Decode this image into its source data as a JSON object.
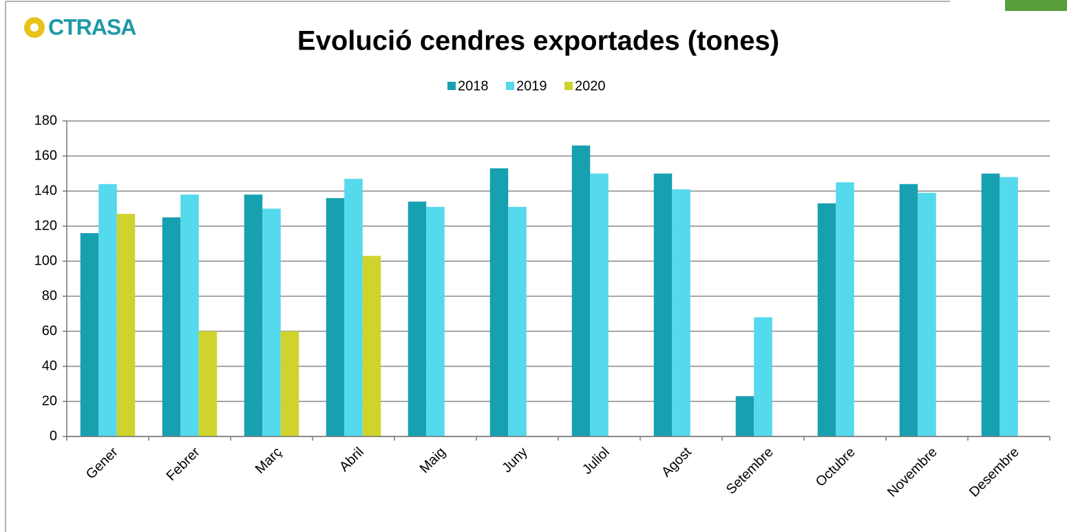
{
  "logo": "CTRASA",
  "chart_data": {
    "type": "bar",
    "title": "Evolució cendres exportades (tones)",
    "categories": [
      "Gener",
      "Febrer",
      "Març",
      "Abril",
      "Maig",
      "Juny",
      "Juliol",
      "Agost",
      "Setembre",
      "Octubre",
      "Novembre",
      "Desembre"
    ],
    "series": [
      {
        "name": "2018",
        "color": "#17a0b0",
        "values": [
          116,
          125,
          138,
          136,
          134,
          153,
          166,
          150,
          23,
          133,
          144,
          150
        ]
      },
      {
        "name": "2019",
        "color": "#55d9ec",
        "values": [
          144,
          138,
          130,
          147,
          131,
          131,
          150,
          141,
          68,
          145,
          139,
          148
        ]
      },
      {
        "name": "2020",
        "color": "#cfd32c",
        "values": [
          127,
          60,
          60,
          103,
          null,
          null,
          null,
          null,
          null,
          null,
          null,
          null
        ]
      }
    ],
    "ylim": [
      0,
      180
    ],
    "yticks": [
      0,
      20,
      40,
      60,
      80,
      100,
      120,
      140,
      160,
      180
    ],
    "grid": true,
    "legend": "top"
  }
}
